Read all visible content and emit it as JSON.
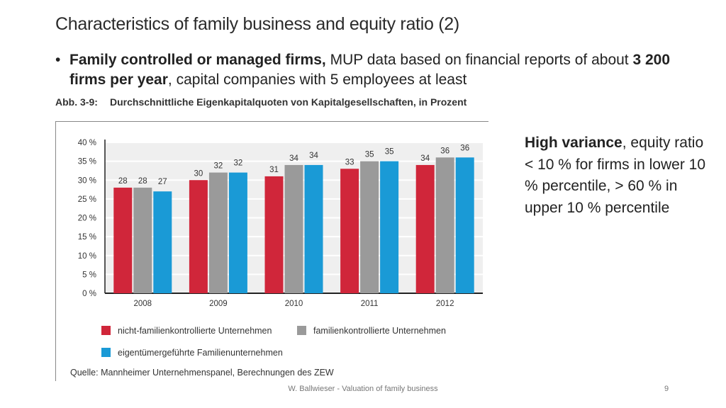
{
  "slide": {
    "title": "Characteristics of family business and equity ratio (2)",
    "bullet_bold_1": "Family controlled or managed firms,",
    "bullet_text_1": " MUP data based on financial reports of about ",
    "bullet_bold_2": "3 200 firms per year",
    "bullet_text_2": ", capital companies with 5 employees at least",
    "side_bold": "High variance",
    "side_text": ", equity ratio < 10 % for firms in lower 10 % percentile, > 60 % in upper 10 % percentile",
    "footer": "W. Ballwieser - Valuation of family business",
    "page_number": "9"
  },
  "figure": {
    "caption_label": "Abb. 3-9:",
    "caption_text": "Durchschnittliche Eigenkapitalquoten von Kapitalgesellschaften, in Prozent",
    "source": "Quelle: Mannheimer Unternehmenspanel, Berechnungen des ZEW"
  },
  "chart_data": {
    "type": "bar",
    "categories": [
      "2008",
      "2009",
      "2010",
      "2011",
      "2012"
    ],
    "series": [
      {
        "name": "nicht-familienkontrollierte Unternehmen",
        "color": "#d0263a",
        "values": [
          28,
          30,
          31,
          33,
          34
        ]
      },
      {
        "name": "familienkontrollierte Unternehmen",
        "color": "#9a9a9a",
        "values": [
          28,
          32,
          34,
          35,
          36
        ]
      },
      {
        "name": "eigentümergeführte Familienunternehmen",
        "color": "#1a9ad6",
        "values": [
          27,
          32,
          34,
          35,
          36
        ]
      }
    ],
    "ylim": [
      0,
      40
    ],
    "yticks": [
      0,
      5,
      10,
      15,
      20,
      25,
      30,
      35,
      40
    ],
    "ytick_labels": [
      "0 %",
      "5 %",
      "10 %",
      "15 %",
      "20 %",
      "25 %",
      "30 %",
      "35 %",
      "40 %"
    ],
    "grid": true,
    "legend_position": "bottom",
    "title": "",
    "xlabel": "",
    "ylabel": ""
  }
}
